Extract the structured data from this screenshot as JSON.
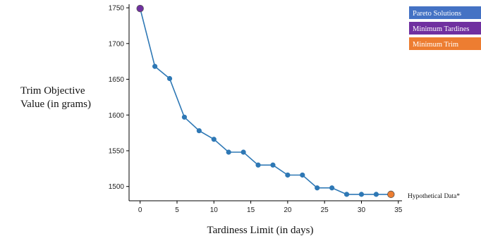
{
  "chart_data": {
    "type": "scatter",
    "xlabel": "Tardiness Limit (in days)",
    "ylabel_lines": [
      "Trim Objective",
      "Value (in grams)"
    ],
    "xlim": [
      -1.5,
      35.5
    ],
    "ylim": [
      1480,
      1755
    ],
    "xticks": [
      0,
      5,
      10,
      15,
      20,
      25,
      30,
      35
    ],
    "yticks": [
      1500,
      1550,
      1600,
      1650,
      1700,
      1750
    ],
    "grid": false,
    "legend_position": "top-right",
    "series": [
      {
        "name": "Pareto Solutions",
        "color": "#4472C4",
        "marker_color": "#2E78B5",
        "x": [
          0,
          2,
          4,
          6,
          8,
          10,
          12,
          14,
          16,
          18,
          20,
          22,
          24,
          26,
          28,
          30,
          32,
          34
        ],
        "y": [
          1749,
          1668,
          1651,
          1597,
          1578,
          1566,
          1548,
          1548,
          1530,
          1530,
          1516,
          1516,
          1498,
          1498,
          1489,
          1489,
          1489,
          1489
        ]
      },
      {
        "name": "Minimum Tardines",
        "color": "#7030A0",
        "x": [
          0
        ],
        "y": [
          1749
        ]
      },
      {
        "name": "Minimum Trim",
        "color": "#ED7D31",
        "x": [
          34
        ],
        "y": [
          1489
        ]
      }
    ],
    "annotation": "Hypothetical Data*"
  }
}
